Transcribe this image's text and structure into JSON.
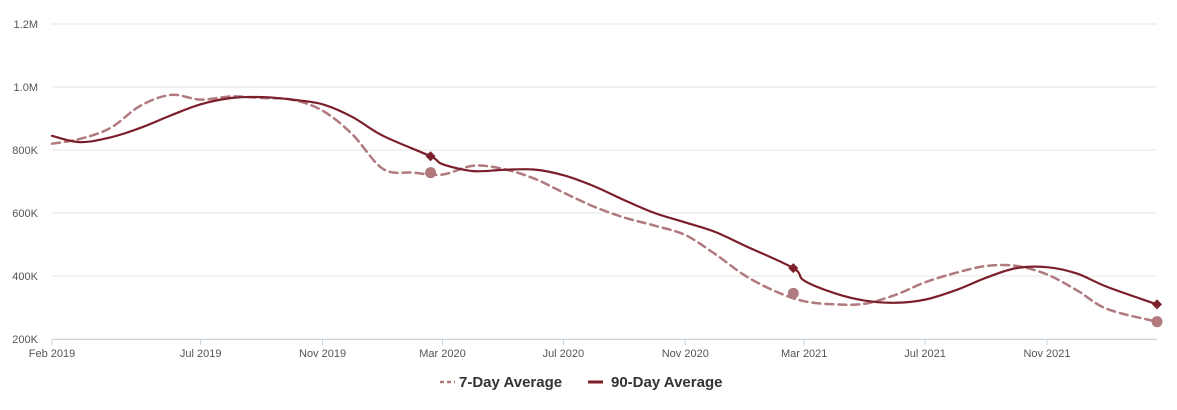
{
  "chart_data": {
    "type": "line",
    "title": "",
    "xlabel": "",
    "ylabel": "",
    "ylim": [
      200000,
      1200000
    ],
    "yticks": [
      {
        "value": 1200000,
        "label": "1.2M"
      },
      {
        "value": 1000000,
        "label": "1.0M"
      },
      {
        "value": 800000,
        "label": "800K"
      },
      {
        "value": 600000,
        "label": "600K"
      },
      {
        "value": 400000,
        "label": "400K"
      },
      {
        "value": 200000,
        "label": "200K"
      }
    ],
    "xlim": [
      "2019-02-01",
      "2022-02-20"
    ],
    "xticks": [
      {
        "date": "2019-02-01",
        "label": "Feb 2019"
      },
      {
        "date": "2019-07-01",
        "label": "Jul 2019"
      },
      {
        "date": "2019-11-01",
        "label": "Nov 2019"
      },
      {
        "date": "2020-03-01",
        "label": "Mar 2020"
      },
      {
        "date": "2020-07-01",
        "label": "Jul 2020"
      },
      {
        "date": "2020-11-01",
        "label": "Nov 2020"
      },
      {
        "date": "2021-03-01",
        "label": "Mar 2021"
      },
      {
        "date": "2021-07-01",
        "label": "Jul 2021"
      },
      {
        "date": "2021-11-01",
        "label": "Nov 2021"
      }
    ],
    "grid": "horizontal",
    "legend": "bottom-center",
    "series": [
      {
        "name": "7-Day Average",
        "color": "#b07a7e",
        "style": "dashed",
        "marker": "circle",
        "points": [
          {
            "x": "2019-02-01",
            "y": 820000
          },
          {
            "x": "2019-03-01",
            "y": 835000
          },
          {
            "x": "2019-04-01",
            "y": 870000
          },
          {
            "x": "2019-05-01",
            "y": 940000
          },
          {
            "x": "2019-06-01",
            "y": 975000
          },
          {
            "x": "2019-07-01",
            "y": 960000
          },
          {
            "x": "2019-08-01",
            "y": 970000
          },
          {
            "x": "2019-09-01",
            "y": 965000
          },
          {
            "x": "2019-10-01",
            "y": 960000
          },
          {
            "x": "2019-11-01",
            "y": 925000
          },
          {
            "x": "2019-12-01",
            "y": 850000
          },
          {
            "x": "2020-01-01",
            "y": 740000
          },
          {
            "x": "2020-02-01",
            "y": 728000
          },
          {
            "x": "2020-03-01",
            "y": 722000
          },
          {
            "x": "2020-04-01",
            "y": 750000
          },
          {
            "x": "2020-05-01",
            "y": 740000
          },
          {
            "x": "2020-06-01",
            "y": 710000
          },
          {
            "x": "2020-07-01",
            "y": 665000
          },
          {
            "x": "2020-08-01",
            "y": 620000
          },
          {
            "x": "2020-09-01",
            "y": 585000
          },
          {
            "x": "2020-10-01",
            "y": 560000
          },
          {
            "x": "2020-11-01",
            "y": 530000
          },
          {
            "x": "2020-12-01",
            "y": 470000
          },
          {
            "x": "2021-01-01",
            "y": 400000
          },
          {
            "x": "2021-02-01",
            "y": 350000
          },
          {
            "x": "2021-03-01",
            "y": 320000
          },
          {
            "x": "2021-04-01",
            "y": 310000
          },
          {
            "x": "2021-05-01",
            "y": 312000
          },
          {
            "x": "2021-06-01",
            "y": 340000
          },
          {
            "x": "2021-07-01",
            "y": 380000
          },
          {
            "x": "2021-08-01",
            "y": 410000
          },
          {
            "x": "2021-09-01",
            "y": 432000
          },
          {
            "x": "2021-10-01",
            "y": 432000
          },
          {
            "x": "2021-11-01",
            "y": 405000
          },
          {
            "x": "2021-12-01",
            "y": 355000
          },
          {
            "x": "2022-01-01",
            "y": 295000
          },
          {
            "x": "2022-02-20",
            "y": 255000
          }
        ],
        "markers": [
          {
            "x": "2020-02-18",
            "y": 728000
          },
          {
            "x": "2021-02-18",
            "y": 345000
          },
          {
            "x": "2022-02-20",
            "y": 255000
          }
        ]
      },
      {
        "name": "90-Day Average",
        "color": "#7b1f2a",
        "style": "solid",
        "marker": "diamond",
        "points": [
          {
            "x": "2019-02-01",
            "y": 845000
          },
          {
            "x": "2019-03-01",
            "y": 825000
          },
          {
            "x": "2019-04-01",
            "y": 840000
          },
          {
            "x": "2019-05-01",
            "y": 870000
          },
          {
            "x": "2019-06-01",
            "y": 910000
          },
          {
            "x": "2019-07-01",
            "y": 945000
          },
          {
            "x": "2019-08-01",
            "y": 965000
          },
          {
            "x": "2019-09-01",
            "y": 968000
          },
          {
            "x": "2019-10-01",
            "y": 960000
          },
          {
            "x": "2019-11-01",
            "y": 945000
          },
          {
            "x": "2019-12-01",
            "y": 905000
          },
          {
            "x": "2020-01-01",
            "y": 845000
          },
          {
            "x": "2020-02-18",
            "y": 780000
          },
          {
            "x": "2020-03-01",
            "y": 755000
          },
          {
            "x": "2020-04-01",
            "y": 733000
          },
          {
            "x": "2020-05-01",
            "y": 737000
          },
          {
            "x": "2020-06-01",
            "y": 738000
          },
          {
            "x": "2020-07-01",
            "y": 720000
          },
          {
            "x": "2020-08-01",
            "y": 685000
          },
          {
            "x": "2020-09-01",
            "y": 640000
          },
          {
            "x": "2020-10-01",
            "y": 600000
          },
          {
            "x": "2020-11-01",
            "y": 570000
          },
          {
            "x": "2020-12-01",
            "y": 540000
          },
          {
            "x": "2021-01-01",
            "y": 495000
          },
          {
            "x": "2021-02-18",
            "y": 425000
          },
          {
            "x": "2021-03-01",
            "y": 385000
          },
          {
            "x": "2021-04-01",
            "y": 345000
          },
          {
            "x": "2021-05-01",
            "y": 322000
          },
          {
            "x": "2021-06-01",
            "y": 315000
          },
          {
            "x": "2021-07-01",
            "y": 325000
          },
          {
            "x": "2021-08-01",
            "y": 355000
          },
          {
            "x": "2021-09-01",
            "y": 395000
          },
          {
            "x": "2021-10-01",
            "y": 425000
          },
          {
            "x": "2021-11-01",
            "y": 428000
          },
          {
            "x": "2021-12-01",
            "y": 408000
          },
          {
            "x": "2022-01-01",
            "y": 365000
          },
          {
            "x": "2022-02-20",
            "y": 310000
          }
        ],
        "markers": [
          {
            "x": "2020-02-18",
            "y": 780000
          },
          {
            "x": "2021-02-18",
            "y": 425000
          },
          {
            "x": "2022-02-20",
            "y": 310000
          }
        ]
      }
    ]
  }
}
